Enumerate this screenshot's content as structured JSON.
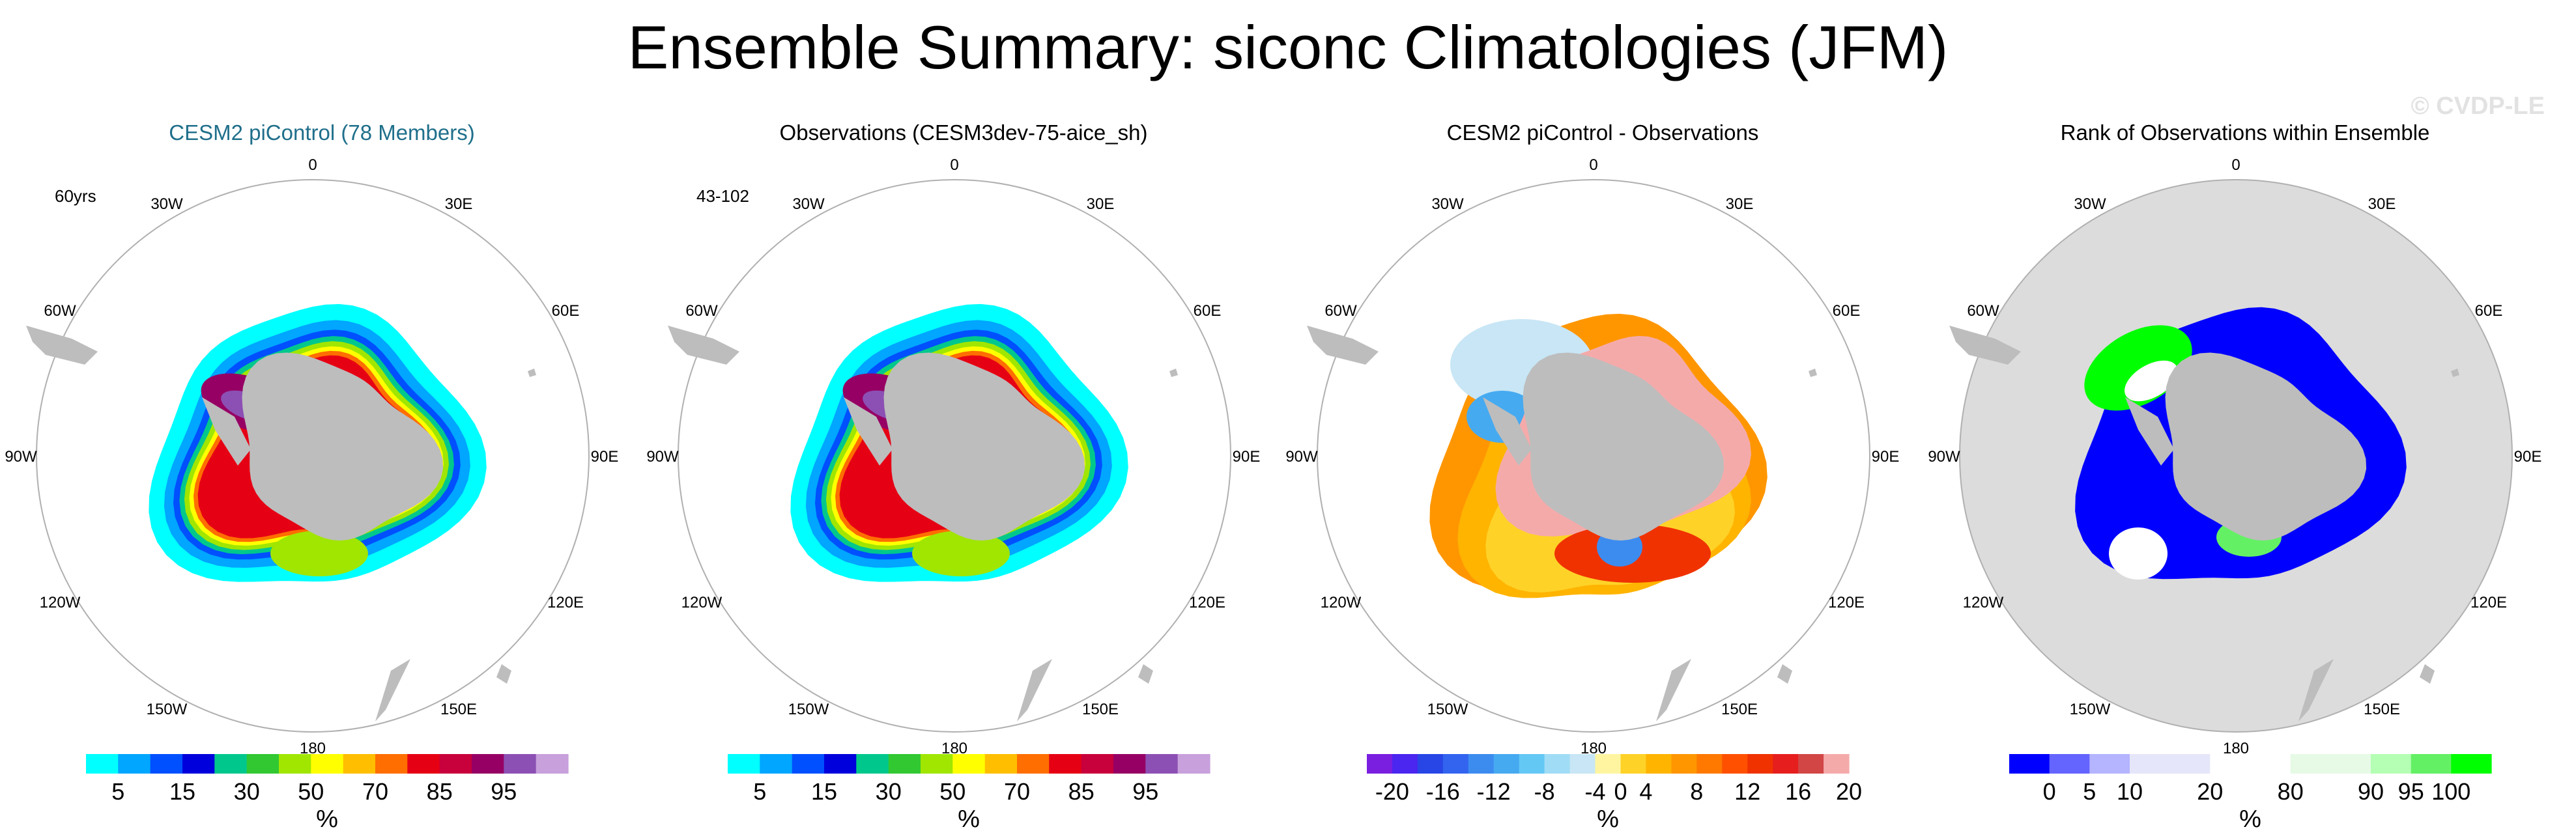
{
  "title": "Ensemble Summary: siconc Climatologies (JFM)",
  "watermark": "© CVDP-LE",
  "lon_labels": [
    "0",
    "30E",
    "60E",
    "90E",
    "120E",
    "150E",
    "180",
    "150W",
    "120W",
    "90W",
    "60W",
    "30W"
  ],
  "colors": {
    "land": "#bdbdbd",
    "ocean_rank_background": "#dcdcdc",
    "circle_edge": "#b0b0b0",
    "title_blue": "#1f6f8b"
  },
  "panels": [
    {
      "title": "CESM2 piControl (78 Members)",
      "title_color": "#1f6f8b",
      "corner_label": "60yrs",
      "colorbar": {
        "colors": [
          "#00ffff",
          "#00a6ff",
          "#0050ff",
          "#0000dc",
          "#00c88c",
          "#32c832",
          "#a0e600",
          "#ffff00",
          "#ffbe00",
          "#ff6e00",
          "#e60014",
          "#c8003c",
          "#960064",
          "#8c50b4",
          "#c8a0dc"
        ],
        "ticks": [
          "5",
          "15",
          "30",
          "50",
          "70",
          "85",
          "95"
        ],
        "tick_positions": [
          1,
          3,
          5,
          7,
          9,
          11,
          13
        ],
        "unit": "%"
      }
    },
    {
      "title": "Observations (CESM3dev-75-aice_sh)",
      "title_color": "#000000",
      "corner_label": "43-102",
      "colorbar": {
        "colors": [
          "#00ffff",
          "#00a6ff",
          "#0050ff",
          "#0000dc",
          "#00c88c",
          "#32c832",
          "#a0e600",
          "#ffff00",
          "#ffbe00",
          "#ff6e00",
          "#e60014",
          "#c8003c",
          "#960064",
          "#8c50b4",
          "#c8a0dc"
        ],
        "ticks": [
          "5",
          "15",
          "30",
          "50",
          "70",
          "85",
          "95"
        ],
        "tick_positions": [
          1,
          3,
          5,
          7,
          9,
          11,
          13
        ],
        "unit": "%"
      }
    },
    {
      "title": "CESM2 piControl - Observations",
      "title_color": "#000000",
      "corner_label": "",
      "colorbar": {
        "colors": [
          "#7a1fe0",
          "#4b25f0",
          "#2846e6",
          "#3264f0",
          "#3c8cf0",
          "#46aaf0",
          "#64c8f5",
          "#a0dcf5",
          "#c8e6f5",
          "#fff5a0",
          "#ffd228",
          "#ffb400",
          "#ff9600",
          "#ff7800",
          "#ff5000",
          "#f03200",
          "#e61e1e",
          "#d24646",
          "#f5aaaa"
        ],
        "ticks": [
          "-20",
          "-16",
          "-12",
          "-8",
          "-4",
          "0",
          "4",
          "8",
          "12",
          "16",
          "20"
        ],
        "tick_positions": [
          1,
          3,
          5,
          7,
          9,
          10,
          11,
          13,
          15,
          17,
          19
        ],
        "unit": "%"
      }
    },
    {
      "title": "Rank of Observations within Ensemble",
      "title_color": "#000000",
      "corner_label": "",
      "colorbar": {
        "colors": [
          "#0000ff",
          "#6464ff",
          "#b4b4ff",
          "#e6e6fa",
          "#e6e6fa",
          "#ffffff",
          "#ffffff",
          "#e6fae6",
          "#e6fae6",
          "#b4ffb4",
          "#64f064",
          "#00ff00"
        ],
        "ticks": [
          "0",
          "5",
          "10",
          "20",
          "80",
          "90",
          "95",
          "100"
        ],
        "tick_positions": [
          1,
          2,
          3,
          5,
          7,
          9,
          10,
          11
        ],
        "unit": "%"
      }
    }
  ]
}
